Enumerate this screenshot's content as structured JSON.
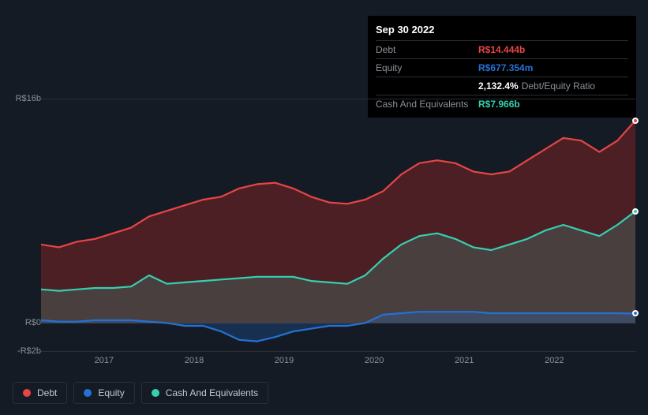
{
  "tooltip": {
    "date": "Sep 30 2022",
    "rows": [
      {
        "label": "Debt",
        "value": "R$14.444b",
        "color": "#e64545"
      },
      {
        "label": "Equity",
        "value": "R$677.354m",
        "color": "#2571d4"
      },
      {
        "label": "",
        "value": "2,132.4%",
        "suffix": "Debt/Equity Ratio",
        "color": "#ffffff"
      },
      {
        "label": "Cash And Equivalents",
        "value": "R$7.966b",
        "color": "#35d0b0"
      }
    ]
  },
  "chart": {
    "type": "area",
    "background_color": "#151b24",
    "grid_color": "#2a2f36",
    "xlim": [
      2016.3,
      2022.9
    ],
    "ylim": [
      -2,
      16
    ],
    "yticks": [
      {
        "v": 16,
        "label": "R$16b"
      },
      {
        "v": 0,
        "label": "R$0"
      },
      {
        "v": -2,
        "label": "-R$2b"
      }
    ],
    "xticks": [
      2017,
      2018,
      2019,
      2020,
      2021,
      2022
    ],
    "line_width": 2.2,
    "series": [
      {
        "name": "Debt",
        "stroke": "#e64545",
        "fill": "rgba(180,40,40,0.35)",
        "end_marker": true,
        "points": [
          [
            2016.3,
            5.6
          ],
          [
            2016.5,
            5.4
          ],
          [
            2016.7,
            5.8
          ],
          [
            2016.9,
            6.0
          ],
          [
            2017.1,
            6.4
          ],
          [
            2017.3,
            6.8
          ],
          [
            2017.5,
            7.6
          ],
          [
            2017.7,
            8.0
          ],
          [
            2017.9,
            8.4
          ],
          [
            2018.1,
            8.8
          ],
          [
            2018.3,
            9.0
          ],
          [
            2018.5,
            9.6
          ],
          [
            2018.7,
            9.9
          ],
          [
            2018.9,
            10.0
          ],
          [
            2019.1,
            9.6
          ],
          [
            2019.3,
            9.0
          ],
          [
            2019.5,
            8.6
          ],
          [
            2019.7,
            8.5
          ],
          [
            2019.9,
            8.8
          ],
          [
            2020.1,
            9.4
          ],
          [
            2020.3,
            10.6
          ],
          [
            2020.5,
            11.4
          ],
          [
            2020.7,
            11.6
          ],
          [
            2020.9,
            11.4
          ],
          [
            2021.1,
            10.8
          ],
          [
            2021.3,
            10.6
          ],
          [
            2021.5,
            10.8
          ],
          [
            2021.7,
            11.6
          ],
          [
            2021.9,
            12.4
          ],
          [
            2022.1,
            13.2
          ],
          [
            2022.3,
            13.0
          ],
          [
            2022.5,
            12.2
          ],
          [
            2022.7,
            13.0
          ],
          [
            2022.9,
            14.444
          ]
        ]
      },
      {
        "name": "Cash And Equivalents",
        "stroke": "#35d0b0",
        "fill": "rgba(53,208,176,0.18)",
        "end_marker": true,
        "points": [
          [
            2016.3,
            2.4
          ],
          [
            2016.5,
            2.3
          ],
          [
            2016.7,
            2.4
          ],
          [
            2016.9,
            2.5
          ],
          [
            2017.1,
            2.5
          ],
          [
            2017.3,
            2.6
          ],
          [
            2017.5,
            3.4
          ],
          [
            2017.7,
            2.8
          ],
          [
            2017.9,
            2.9
          ],
          [
            2018.1,
            3.0
          ],
          [
            2018.3,
            3.1
          ],
          [
            2018.5,
            3.2
          ],
          [
            2018.7,
            3.3
          ],
          [
            2018.9,
            3.3
          ],
          [
            2019.1,
            3.3
          ],
          [
            2019.3,
            3.0
          ],
          [
            2019.5,
            2.9
          ],
          [
            2019.7,
            2.8
          ],
          [
            2019.9,
            3.4
          ],
          [
            2020.1,
            4.6
          ],
          [
            2020.3,
            5.6
          ],
          [
            2020.5,
            6.2
          ],
          [
            2020.7,
            6.4
          ],
          [
            2020.9,
            6.0
          ],
          [
            2021.1,
            5.4
          ],
          [
            2021.3,
            5.2
          ],
          [
            2021.5,
            5.6
          ],
          [
            2021.7,
            6.0
          ],
          [
            2021.9,
            6.6
          ],
          [
            2022.1,
            7.0
          ],
          [
            2022.3,
            6.6
          ],
          [
            2022.5,
            6.2
          ],
          [
            2022.7,
            7.0
          ],
          [
            2022.9,
            7.966
          ]
        ]
      },
      {
        "name": "Equity",
        "stroke": "#2571d4",
        "fill": "rgba(37,113,212,0.25)",
        "end_marker": true,
        "points": [
          [
            2016.3,
            0.2
          ],
          [
            2016.5,
            0.1
          ],
          [
            2016.7,
            0.1
          ],
          [
            2016.9,
            0.2
          ],
          [
            2017.1,
            0.2
          ],
          [
            2017.3,
            0.2
          ],
          [
            2017.5,
            0.1
          ],
          [
            2017.7,
            0.0
          ],
          [
            2017.9,
            -0.2
          ],
          [
            2018.1,
            -0.2
          ],
          [
            2018.3,
            -0.6
          ],
          [
            2018.5,
            -1.2
          ],
          [
            2018.7,
            -1.3
          ],
          [
            2018.9,
            -1.0
          ],
          [
            2019.1,
            -0.6
          ],
          [
            2019.3,
            -0.4
          ],
          [
            2019.5,
            -0.2
          ],
          [
            2019.7,
            -0.2
          ],
          [
            2019.9,
            0.0
          ],
          [
            2020.1,
            0.6
          ],
          [
            2020.3,
            0.7
          ],
          [
            2020.5,
            0.8
          ],
          [
            2020.7,
            0.8
          ],
          [
            2020.9,
            0.8
          ],
          [
            2021.1,
            0.8
          ],
          [
            2021.3,
            0.7
          ],
          [
            2021.5,
            0.7
          ],
          [
            2021.7,
            0.7
          ],
          [
            2021.9,
            0.7
          ],
          [
            2022.1,
            0.7
          ],
          [
            2022.3,
            0.7
          ],
          [
            2022.5,
            0.7
          ],
          [
            2022.7,
            0.7
          ],
          [
            2022.9,
            0.677
          ]
        ]
      }
    ]
  },
  "legend": [
    {
      "label": "Debt",
      "color": "#e64545"
    },
    {
      "label": "Equity",
      "color": "#2571d4"
    },
    {
      "label": "Cash And Equivalents",
      "color": "#35d0b0"
    }
  ]
}
